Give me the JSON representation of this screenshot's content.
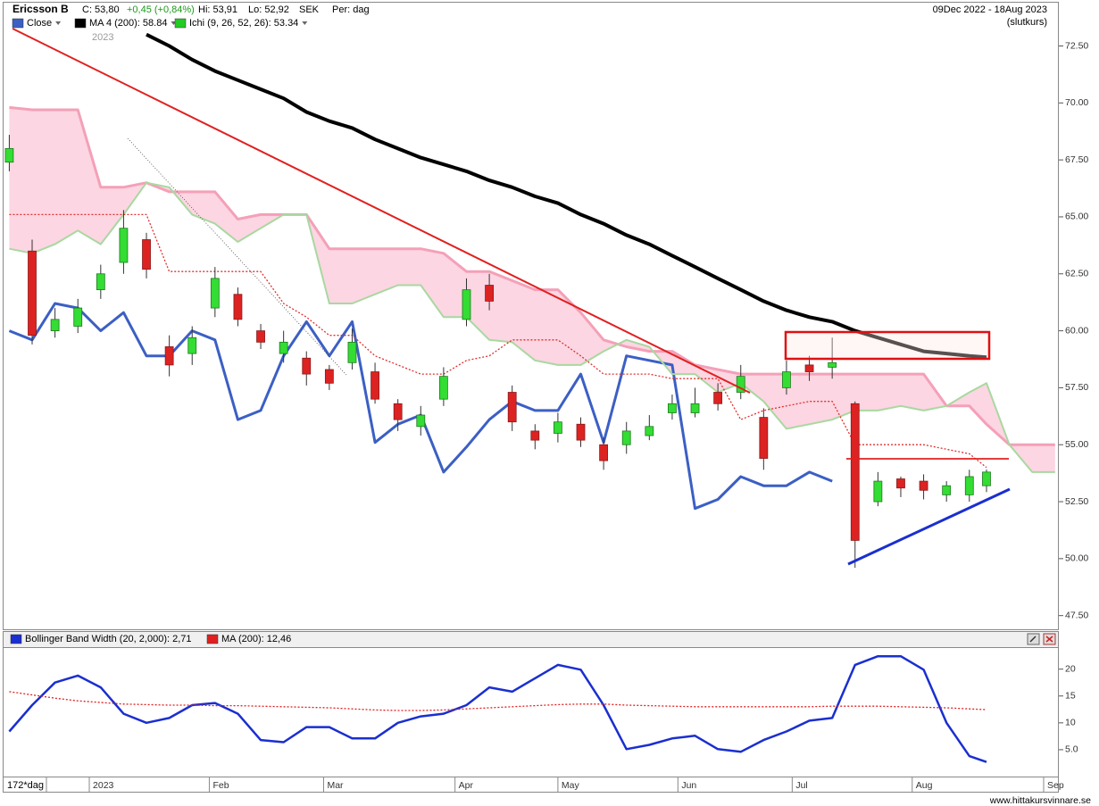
{
  "chart_data": [
    {
      "type": "candlestick",
      "title": "Ericsson B",
      "quote": {
        "close": "C: 53,80",
        "change": "+0,45 (+0,84%)",
        "high": "Hi: 53,91",
        "low": "Lo: 52,92",
        "currency": "SEK",
        "period": "Per: dag"
      },
      "date_range": "09Dec 2022 - 18Aug 2023",
      "price_basis": "(slutkurs)",
      "year_label": "2023",
      "xlim": [
        0,
        184.5
      ],
      "ylim": [
        46.9,
        74.4
      ],
      "yticks": [
        {
          "value": 47.5,
          "label": "47.50"
        },
        {
          "value": 50,
          "label": "50.00"
        },
        {
          "value": 52.5,
          "label": "52.50"
        },
        {
          "value": 55,
          "label": "55.00"
        },
        {
          "value": 57.5,
          "label": "57.50"
        },
        {
          "value": 60,
          "label": "60.00"
        },
        {
          "value": 62.5,
          "label": "62.50"
        },
        {
          "value": 65,
          "label": "65.00"
        },
        {
          "value": 67.5,
          "label": "67.50"
        },
        {
          "value": 70,
          "label": "70.00"
        },
        {
          "value": 72.5,
          "label": "72.50"
        }
      ],
      "up_color": "#33dd33",
      "down_color": "#dd2222",
      "x": [
        1,
        5,
        9,
        13,
        17,
        21,
        25,
        29,
        33,
        37,
        41,
        45,
        49,
        53,
        57,
        61,
        65,
        69,
        73,
        77,
        81,
        85,
        89,
        93,
        97,
        101,
        105,
        109,
        113,
        117,
        121,
        125,
        129,
        133,
        137,
        141,
        145,
        149,
        153,
        157,
        161,
        165,
        169,
        172,
        176,
        180,
        184
      ],
      "open": [
        67.4,
        63.5,
        60.0,
        60.2,
        61.8,
        63.0,
        64.0,
        59.3,
        59.0,
        61.0,
        61.6,
        60.0,
        59.0,
        58.8,
        58.3,
        58.6,
        58.2,
        56.8,
        55.8,
        57.0,
        60.5,
        62.0,
        57.3,
        55.6,
        55.5,
        55.9,
        55.0,
        55.0,
        55.4,
        56.4,
        56.4,
        57.3,
        57.3,
        56.2,
        57.5,
        58.5,
        58.4,
        56.8,
        52.5,
        53.5,
        53.4,
        52.8,
        52.8,
        53.2,
        null,
        null,
        null
      ],
      "high": [
        68.6,
        64.0,
        61.0,
        61.4,
        62.9,
        65.3,
        64.3,
        59.8,
        60.2,
        62.8,
        61.9,
        60.3,
        60.0,
        59.1,
        58.5,
        60.1,
        58.6,
        57.0,
        56.7,
        58.4,
        62.3,
        62.5,
        57.6,
        55.9,
        56.4,
        56.2,
        55.3,
        56.0,
        56.3,
        57.2,
        57.5,
        57.7,
        58.5,
        56.6,
        58.7,
        58.9,
        59.7,
        56.9,
        53.8,
        53.6,
        53.7,
        53.4,
        53.9,
        53.91,
        null,
        null,
        null
      ],
      "low": [
        67.0,
        59.4,
        59.7,
        59.9,
        61.4,
        62.5,
        62.3,
        58.0,
        58.5,
        60.6,
        60.2,
        59.2,
        58.6,
        57.6,
        57.4,
        58.3,
        56.8,
        55.6,
        55.4,
        56.7,
        60.2,
        60.9,
        55.6,
        54.8,
        55.1,
        54.9,
        53.9,
        54.6,
        55.2,
        56.1,
        56.2,
        56.5,
        57.0,
        53.9,
        57.2,
        57.8,
        57.9,
        49.6,
        52.3,
        52.7,
        52.6,
        52.5,
        52.5,
        52.92,
        null,
        null,
        null
      ],
      "close": [
        68.0,
        59.8,
        60.5,
        61.0,
        62.5,
        64.5,
        62.7,
        58.5,
        59.7,
        62.3,
        60.5,
        59.5,
        59.5,
        58.1,
        57.7,
        59.5,
        57.0,
        56.1,
        56.3,
        58.0,
        61.8,
        61.3,
        56.0,
        55.2,
        56.0,
        55.2,
        54.3,
        55.6,
        55.8,
        56.8,
        56.8,
        56.8,
        58.0,
        54.4,
        58.2,
        58.2,
        58.6,
        50.8,
        53.4,
        53.1,
        53.0,
        53.2,
        53.6,
        53.8,
        null,
        null,
        null
      ],
      "series": [
        {
          "name": "Close",
          "color": "#3b5fc4",
          "line_width": 3,
          "values": [
            60.0,
            59.6,
            61.2,
            61.0,
            60.0,
            60.8,
            58.9,
            58.9,
            60.0,
            59.6,
            56.1,
            56.5,
            58.9,
            60.4,
            58.9,
            60.4,
            55.1,
            55.9,
            56.3,
            53.8,
            54.9,
            56.1,
            56.9,
            56.5,
            56.5,
            58.1,
            55.1,
            58.9,
            58.7,
            58.5,
            52.2,
            52.6,
            53.6,
            53.2,
            53.2,
            53.8,
            53.4,
            null,
            null,
            null,
            null,
            null,
            null,
            null,
            null,
            null,
            null
          ]
        },
        {
          "name": "MA 4 (200): 58.84",
          "color": "#000000",
          "line_width": 4,
          "values": [
            null,
            null,
            null,
            null,
            null,
            null,
            73.0,
            72.5,
            71.9,
            71.4,
            71.0,
            70.6,
            70.2,
            69.6,
            69.2,
            68.9,
            68.4,
            68.0,
            67.6,
            67.3,
            67.0,
            66.6,
            66.3,
            65.9,
            65.6,
            65.1,
            64.7,
            64.2,
            63.8,
            63.3,
            62.8,
            62.3,
            61.8,
            61.3,
            60.9,
            60.6,
            60.4,
            60.0,
            59.7,
            59.4,
            59.1,
            59.0,
            58.9,
            58.84,
            null,
            null,
            null
          ]
        },
        {
          "name": "Ichi (9, 26, 52, 26): 53.34",
          "color": "#f4a0b8",
          "legend_color": "#22cc22",
          "line_width": 3,
          "fill_between": true,
          "fill": "#fcd6e2",
          "values": [
            69.8,
            69.7,
            69.7,
            69.7,
            66.3,
            66.3,
            66.5,
            66.1,
            66.1,
            66.1,
            64.9,
            65.1,
            65.1,
            65.1,
            63.6,
            63.6,
            63.6,
            63.6,
            63.6,
            63.4,
            62.6,
            62.6,
            62.2,
            61.8,
            61.8,
            60.8,
            59.6,
            59.3,
            59.1,
            59.1,
            58.5,
            58.3,
            58.1,
            58.1,
            58.1,
            58.1,
            58.1,
            58.1,
            58.1,
            58.1,
            58.1,
            56.7,
            56.7,
            55.9,
            55.0,
            55.0,
            55.0
          ]
        },
        {
          "color": "#a8d8a0",
          "line_width": 2,
          "values": [
            63.6,
            63.4,
            63.8,
            64.4,
            63.8,
            65.1,
            66.5,
            66.3,
            65.1,
            64.7,
            63.9,
            64.5,
            65.1,
            65.1,
            61.2,
            61.2,
            61.6,
            62.0,
            62.0,
            60.6,
            60.6,
            59.6,
            59.5,
            58.7,
            58.5,
            58.5,
            59.1,
            59.6,
            59.3,
            58.1,
            58.1,
            57.3,
            57.7,
            56.9,
            55.7,
            55.9,
            56.1,
            56.5,
            56.5,
            56.7,
            56.5,
            56.7,
            57.3,
            57.7,
            55.0,
            53.8,
            53.8
          ]
        },
        {
          "color": "#e03030",
          "line_width": 1.3,
          "dash": true,
          "values": [
            65.1,
            65.1,
            65.1,
            65.1,
            65.1,
            65.1,
            65.1,
            62.6,
            62.6,
            62.6,
            62.6,
            62.6,
            61.2,
            60.6,
            59.8,
            59.8,
            58.9,
            58.5,
            58.1,
            58.1,
            58.7,
            58.9,
            59.6,
            59.6,
            59.6,
            58.9,
            58.1,
            58.1,
            58.1,
            57.9,
            57.9,
            57.9,
            56.1,
            56.5,
            56.7,
            56.9,
            56.9,
            55.0,
            55.0,
            55.0,
            55.0,
            54.8,
            54.6,
            54.0,
            null,
            null,
            null
          ]
        }
      ]
    },
    {
      "type": "line",
      "period_label": "172*dag",
      "xlim": [
        0,
        184.5
      ],
      "ylim": [
        0,
        24.1
      ],
      "yticks": [
        {
          "value": 5,
          "label": "5.0"
        },
        10,
        15,
        20
      ],
      "xticks": [
        {
          "value": 15,
          "label": "2023"
        },
        {
          "value": 36,
          "label": "Feb"
        },
        {
          "value": 56,
          "label": "Mar"
        },
        {
          "value": 79,
          "label": "Apr"
        },
        {
          "value": 97,
          "label": "May"
        },
        {
          "value": 118,
          "label": "Jun"
        },
        {
          "value": 138,
          "label": "Jul"
        },
        {
          "value": 159,
          "label": "Aug"
        },
        {
          "value": 182,
          "label": "Sep"
        }
      ],
      "x": [
        1,
        5,
        9,
        13,
        17,
        21,
        25,
        29,
        33,
        37,
        41,
        45,
        49,
        53,
        57,
        61,
        65,
        69,
        73,
        77,
        81,
        85,
        89,
        93,
        97,
        101,
        105,
        109,
        113,
        117,
        121,
        125,
        129,
        133,
        137,
        141,
        145,
        149,
        153,
        157,
        161,
        165,
        169,
        172
      ],
      "series": [
        {
          "name": "Bollinger Band Width (20, 2,000): 2,71",
          "color": "#1a2fd0",
          "line_width": 2.5,
          "values": [
            8.4,
            13.3,
            17.5,
            18.8,
            16.6,
            11.7,
            10.0,
            10.9,
            13.3,
            13.7,
            11.7,
            6.8,
            6.4,
            9.2,
            9.2,
            7.1,
            7.1,
            10.0,
            11.2,
            11.7,
            13.3,
            16.6,
            15.8,
            18.3,
            20.8,
            19.9,
            13.3,
            5.1,
            5.9,
            7.1,
            7.6,
            5.1,
            4.6,
            6.8,
            8.4,
            10.4,
            10.9,
            20.8,
            22.4,
            22.4,
            19.9,
            10.0,
            3.8,
            2.71
          ]
        },
        {
          "name": "MA (200): 12,46",
          "color": "#e02020",
          "line_width": 1.3,
          "dash": true,
          "values": [
            15.8,
            15.2,
            14.6,
            14.1,
            13.8,
            13.5,
            13.4,
            13.3,
            13.3,
            13.2,
            13.2,
            13.1,
            13.0,
            12.9,
            12.8,
            12.6,
            12.4,
            12.3,
            12.3,
            12.4,
            12.6,
            12.8,
            13.0,
            13.2,
            13.4,
            13.5,
            13.5,
            13.3,
            13.2,
            13.1,
            13.0,
            13.0,
            13.0,
            13.0,
            13.0,
            13.0,
            13.1,
            13.1,
            13.1,
            13.0,
            12.9,
            12.8,
            12.6,
            12.46
          ]
        }
      ]
    }
  ],
  "footer": "www.hittakursvinnare.se"
}
